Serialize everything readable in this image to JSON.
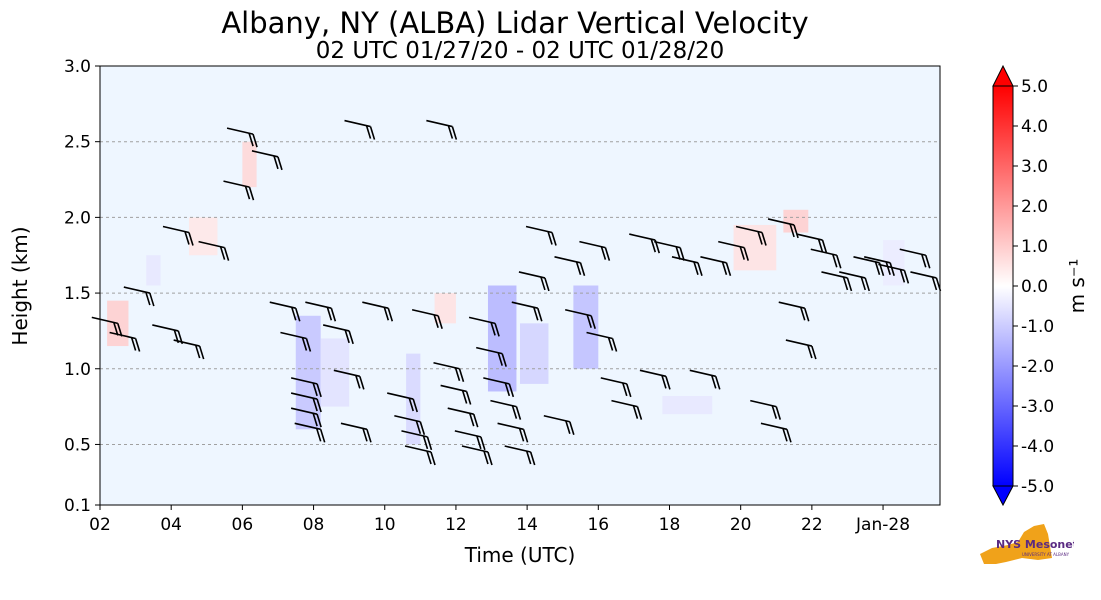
{
  "chart_data": {
    "type": "heatmap",
    "title": "Albany, NY (ALBA) Lidar Vertical Velocity",
    "subtitle": "02 UTC 01/27/20 - 02 UTC 01/28/20",
    "xlabel": "Time (UTC)",
    "ylabel": "Height (km)",
    "xlim": [
      2,
      25.6
    ],
    "ylim": [
      0.1,
      3.0
    ],
    "x_ticks": [
      2,
      4,
      6,
      8,
      10,
      12,
      14,
      16,
      18,
      20,
      22,
      24
    ],
    "x_tick_labels": [
      "02",
      "04",
      "06",
      "08",
      "10",
      "12",
      "14",
      "16",
      "18",
      "20",
      "22",
      "Jan-28"
    ],
    "y_ticks": [
      0.1,
      0.5,
      1.0,
      1.5,
      2.0,
      2.5,
      3.0
    ],
    "y_tick_labels": [
      "0.1",
      "0.5",
      "1.0",
      "1.5",
      "2.0",
      "2.5",
      "3.0"
    ],
    "grid": "horizontal dashed",
    "colorbar": {
      "label": "m s⁻¹",
      "min": -5.0,
      "max": 5.0,
      "ticks": [
        5.0,
        4.0,
        3.0,
        2.0,
        1.0,
        0.0,
        -1.0,
        -2.0,
        -3.0,
        -4.0,
        -5.0
      ],
      "tick_labels": [
        "5.0",
        "4.0",
        "3.0",
        "2.0",
        "1.0",
        "0.0",
        "-1.0",
        "-2.0",
        "-3.0",
        "-4.0",
        "-5.0"
      ],
      "colormap": "bwr",
      "extend": "both"
    },
    "background_color": "#eef6ff",
    "velocity_patches": [
      {
        "t": [
          2.2,
          2.8
        ],
        "h": [
          1.15,
          1.45
        ],
        "w": 1.0
      },
      {
        "t": [
          3.3,
          3.7
        ],
        "h": [
          1.55,
          1.75
        ],
        "w": -0.5
      },
      {
        "t": [
          4.5,
          5.3
        ],
        "h": [
          1.75,
          2.0
        ],
        "w": 0.5
      },
      {
        "t": [
          6.0,
          6.4
        ],
        "h": [
          2.2,
          2.5
        ],
        "w": 0.8
      },
      {
        "t": [
          7.5,
          8.2
        ],
        "h": [
          0.6,
          1.35
        ],
        "w": -1.2
      },
      {
        "t": [
          8.2,
          9.0
        ],
        "h": [
          0.75,
          1.2
        ],
        "w": -0.6
      },
      {
        "t": [
          10.6,
          11.0
        ],
        "h": [
          0.5,
          1.1
        ],
        "w": -0.8
      },
      {
        "t": [
          11.4,
          12.0
        ],
        "h": [
          1.3,
          1.5
        ],
        "w": 0.6
      },
      {
        "t": [
          12.9,
          13.7
        ],
        "h": [
          0.85,
          1.55
        ],
        "w": -1.5
      },
      {
        "t": [
          13.8,
          14.6
        ],
        "h": [
          0.9,
          1.3
        ],
        "w": -0.9
      },
      {
        "t": [
          15.3,
          16.0
        ],
        "h": [
          1.0,
          1.55
        ],
        "w": -1.3
      },
      {
        "t": [
          17.8,
          19.2
        ],
        "h": [
          0.7,
          0.82
        ],
        "w": -0.5
      },
      {
        "t": [
          19.8,
          21.0
        ],
        "h": [
          1.65,
          1.95
        ],
        "w": 0.6
      },
      {
        "t": [
          21.2,
          21.9
        ],
        "h": [
          1.9,
          2.05
        ],
        "w": 1.0
      },
      {
        "t": [
          24.0,
          24.6
        ],
        "h": [
          1.55,
          1.85
        ],
        "w": -0.4
      }
    ],
    "wind_barbs": [
      {
        "t": 2.5,
        "h": 1.3
      },
      {
        "t": 3.0,
        "h": 1.2
      },
      {
        "t": 3.4,
        "h": 1.5
      },
      {
        "t": 4.2,
        "h": 1.25
      },
      {
        "t": 4.8,
        "h": 1.15
      },
      {
        "t": 4.5,
        "h": 1.9
      },
      {
        "t": 5.5,
        "h": 1.8
      },
      {
        "t": 6.2,
        "h": 2.2
      },
      {
        "t": 6.3,
        "h": 2.55
      },
      {
        "t": 7.0,
        "h": 2.4
      },
      {
        "t": 7.5,
        "h": 1.4
      },
      {
        "t": 7.8,
        "h": 1.2
      },
      {
        "t": 8.1,
        "h": 0.9
      },
      {
        "t": 8.1,
        "h": 0.8
      },
      {
        "t": 8.1,
        "h": 0.7
      },
      {
        "t": 8.2,
        "h": 0.6
      },
      {
        "t": 8.5,
        "h": 1.4
      },
      {
        "t": 9.0,
        "h": 1.25
      },
      {
        "t": 9.3,
        "h": 0.95
      },
      {
        "t": 9.5,
        "h": 0.6
      },
      {
        "t": 9.6,
        "h": 2.6
      },
      {
        "t": 10.1,
        "h": 1.4
      },
      {
        "t": 10.8,
        "h": 0.8
      },
      {
        "t": 11.0,
        "h": 0.65
      },
      {
        "t": 11.2,
        "h": 0.55
      },
      {
        "t": 11.3,
        "h": 0.45
      },
      {
        "t": 11.5,
        "h": 1.35
      },
      {
        "t": 11.9,
        "h": 2.6
      },
      {
        "t": 12.1,
        "h": 1.0
      },
      {
        "t": 12.3,
        "h": 0.85
      },
      {
        "t": 12.5,
        "h": 0.7
      },
      {
        "t": 12.7,
        "h": 0.55
      },
      {
        "t": 12.9,
        "h": 0.45
      },
      {
        "t": 13.1,
        "h": 1.3
      },
      {
        "t": 13.3,
        "h": 1.1
      },
      {
        "t": 13.5,
        "h": 0.9
      },
      {
        "t": 13.7,
        "h": 0.75
      },
      {
        "t": 13.9,
        "h": 0.6
      },
      {
        "t": 14.1,
        "h": 0.45
      },
      {
        "t": 14.3,
        "h": 1.4
      },
      {
        "t": 14.5,
        "h": 1.6
      },
      {
        "t": 14.7,
        "h": 1.9
      },
      {
        "t": 15.2,
        "h": 0.65
      },
      {
        "t": 15.5,
        "h": 1.7
      },
      {
        "t": 15.8,
        "h": 1.35
      },
      {
        "t": 16.2,
        "h": 1.8
      },
      {
        "t": 16.4,
        "h": 1.2
      },
      {
        "t": 16.8,
        "h": 0.9
      },
      {
        "t": 17.1,
        "h": 0.75
      },
      {
        "t": 17.6,
        "h": 1.85
      },
      {
        "t": 17.9,
        "h": 0.95
      },
      {
        "t": 18.3,
        "h": 1.8
      },
      {
        "t": 18.8,
        "h": 1.7
      },
      {
        "t": 19.3,
        "h": 0.95
      },
      {
        "t": 19.6,
        "h": 1.7
      },
      {
        "t": 20.1,
        "h": 1.8
      },
      {
        "t": 20.6,
        "h": 1.9
      },
      {
        "t": 21.0,
        "h": 0.75
      },
      {
        "t": 21.3,
        "h": 0.6
      },
      {
        "t": 21.5,
        "h": 1.95
      },
      {
        "t": 21.8,
        "h": 1.4
      },
      {
        "t": 22.0,
        "h": 1.15
      },
      {
        "t": 22.3,
        "h": 1.85
      },
      {
        "t": 22.7,
        "h": 1.75
      },
      {
        "t": 23.0,
        "h": 1.6
      },
      {
        "t": 23.5,
        "h": 1.6
      },
      {
        "t": 23.9,
        "h": 1.7
      },
      {
        "t": 24.2,
        "h": 1.7
      },
      {
        "t": 24.6,
        "h": 1.65
      },
      {
        "t": 25.2,
        "h": 1.75
      },
      {
        "t": 25.5,
        "h": 1.6
      }
    ]
  },
  "logo": {
    "text_main": "NYS Mesonet",
    "text_sub": "UNIVERSITY AT ALBANY",
    "color_state": "#f0a21a",
    "color_text": "#5a2a82"
  }
}
